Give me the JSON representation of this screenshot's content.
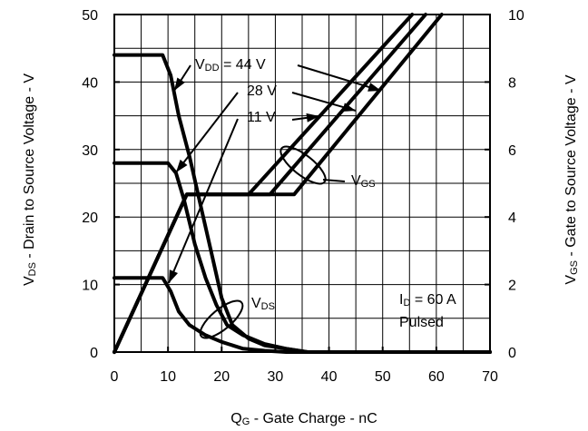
{
  "chart_data": {
    "type": "line",
    "title": "",
    "xlabel": {
      "main": "Q",
      "sub": "G",
      "rest": " - Gate Charge - nC"
    },
    "ylabel_left": {
      "main": "V",
      "sub": "DS",
      "rest": " - Drain to Source Voltage - V"
    },
    "ylabel_right": {
      "main": "V",
      "sub": "GS",
      "rest": " - Gate to Source Voltage - V"
    },
    "xlim": [
      0,
      70
    ],
    "ylim_left": [
      0,
      50
    ],
    "ylim_right": [
      0,
      10
    ],
    "xticks": [
      "0",
      "10",
      "20",
      "30",
      "40",
      "50",
      "60",
      "70"
    ],
    "yticks_left": [
      "0",
      "10",
      "20",
      "30",
      "40",
      "50"
    ],
    "yticks_right": [
      "0",
      "2",
      "4",
      "6",
      "8",
      "10"
    ],
    "grid": true,
    "series": [
      {
        "name": "VDD = 44 V",
        "axis": "left",
        "x": [
          0,
          9,
          10.5,
          12,
          14,
          16,
          18,
          20,
          22,
          25,
          28,
          32,
          36,
          70
        ],
        "y": [
          44,
          44,
          41,
          35,
          29,
          22,
          15,
          8,
          4,
          2,
          1,
          0.5,
          0,
          0
        ]
      },
      {
        "name": "28 V",
        "axis": "left",
        "x": [
          0,
          10,
          11.5,
          13,
          15,
          17,
          19,
          21,
          24,
          28,
          32,
          36,
          70
        ],
        "y": [
          28,
          28,
          26.5,
          22.5,
          16,
          11,
          7,
          4,
          2.5,
          1.2,
          0.5,
          0,
          0
        ]
      },
      {
        "name": "11 V",
        "axis": "left",
        "x": [
          0,
          9,
          10.5,
          12,
          14,
          17,
          20,
          24,
          28,
          32,
          35,
          70
        ],
        "y": [
          11,
          11,
          9,
          6,
          4,
          2.5,
          1.5,
          0.5,
          0.2,
          0,
          0,
          0
        ]
      },
      {
        "name": "VGS, VDD = 44 V",
        "axis": "right",
        "x": [
          0,
          13.5,
          33.5,
          61
        ],
        "y": [
          0,
          4.67,
          4.67,
          10
        ]
      },
      {
        "name": "VGS, VDD = 28 V",
        "axis": "right",
        "x": [
          0,
          13.5,
          29,
          58
        ],
        "y": [
          0,
          4.67,
          4.67,
          10
        ]
      },
      {
        "name": "VGS, VDD = 11 V",
        "axis": "right",
        "x": [
          0,
          13.5,
          25,
          55.5
        ],
        "y": [
          0,
          4.67,
          4.67,
          10
        ]
      }
    ],
    "annotations": {
      "vdd": {
        "main": "V",
        "sub": "DD",
        "rest": " = 44 V"
      },
      "v28": "28 V",
      "v11": "11 V",
      "vgs": {
        "main": "V",
        "sub": "GS"
      },
      "vds": {
        "main": "V",
        "sub": "DS"
      },
      "id": {
        "main": "I",
        "sub": "D",
        "rest": " = 60 A"
      },
      "pulsed": "Pulsed"
    },
    "line_color": "#000000"
  }
}
